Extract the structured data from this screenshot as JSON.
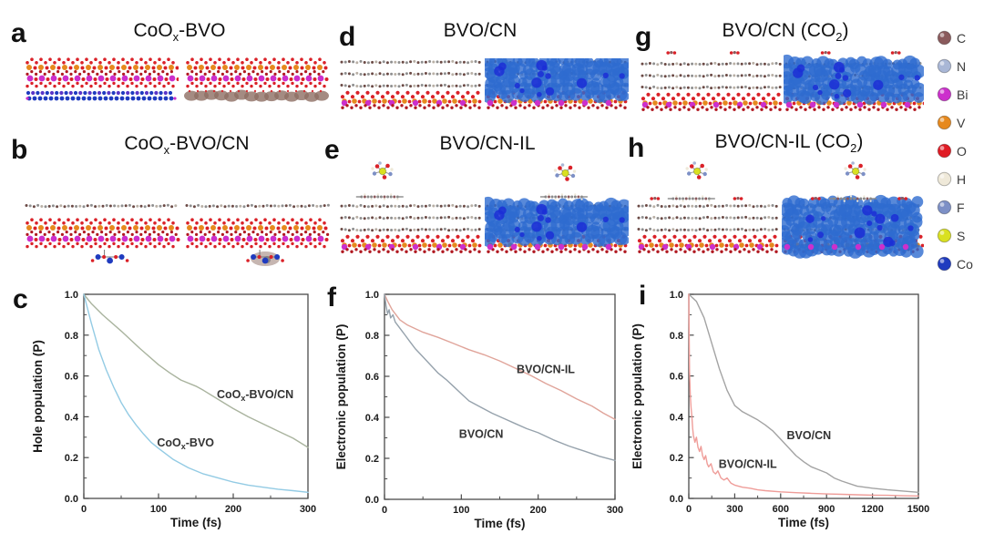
{
  "panels": {
    "a": {
      "letter": "a",
      "title": {
        "pre": "CoO",
        "sub": "x",
        "post": "-BVO"
      }
    },
    "b": {
      "letter": "b",
      "title": {
        "pre": "CoO",
        "sub": "x",
        "post": "-BVO/CN"
      }
    },
    "c": {
      "letter": "c"
    },
    "d": {
      "letter": "d",
      "title": {
        "pre": "BVO/CN",
        "sub": "",
        "post": ""
      }
    },
    "e": {
      "letter": "e",
      "title": {
        "pre": "BVO/CN-IL",
        "sub": "",
        "post": ""
      }
    },
    "f": {
      "letter": "f"
    },
    "g": {
      "letter": "g",
      "title": {
        "pre": "BVO/CN (CO",
        "sub": "2",
        "post": ")"
      }
    },
    "h": {
      "letter": "h",
      "title": {
        "pre": "BVO/CN-IL (CO",
        "sub": "2",
        "post": ")"
      }
    },
    "i": {
      "letter": "i"
    }
  },
  "legend": {
    "items": [
      {
        "symbol": "C",
        "color": "#8a5a5c"
      },
      {
        "symbol": "N",
        "color": "#a9b7d6"
      },
      {
        "symbol": "Bi",
        "color": "#cc2fcc"
      },
      {
        "symbol": "V",
        "color": "#e6891e"
      },
      {
        "symbol": "O",
        "color": "#e01b24"
      },
      {
        "symbol": "H",
        "color": "#efe9d9"
      },
      {
        "symbol": "F",
        "color": "#7d90c6"
      },
      {
        "symbol": "S",
        "color": "#d9e021"
      },
      {
        "symbol": "Co",
        "color": "#1f3bbf"
      }
    ]
  },
  "structures": {
    "a": [
      {
        "base": "bvo-slab",
        "bottom": "coox-atom-rows",
        "overlay": null,
        "molecules": []
      },
      {
        "base": "bvo-slab",
        "bottom": "hole-density-blobs",
        "overlay": null,
        "molecules": []
      }
    ],
    "b": [
      {
        "base": "cn-sheet-bvo-slab",
        "bottom": "coox-cluster",
        "overlay": null,
        "molecules": []
      },
      {
        "base": "cn-sheet-bvo-slab",
        "bottom": "coox-cluster-blob",
        "overlay": null,
        "molecules": []
      }
    ],
    "d": [
      {
        "base": "cn3-bvo-slab",
        "bottom": null,
        "overlay": null,
        "molecules": []
      },
      {
        "base": "cn3-bvo-slab",
        "bottom": null,
        "overlay": "electron-density-blue",
        "molecules": []
      }
    ],
    "e": [
      {
        "base": "cn3-bvo-slab",
        "bottom": null,
        "overlay": null,
        "molecules": [
          {
            "type": "il-anion",
            "fx": 0.3,
            "y": 22
          },
          {
            "type": "il-cation-chain",
            "fx": 0.28,
            "y": 50
          }
        ]
      },
      {
        "base": "cn3-bvo-slab",
        "bottom": null,
        "overlay": "electron-density-blue",
        "molecules": [
          {
            "type": "il-anion",
            "fx": 0.56,
            "y": 24
          },
          {
            "type": "il-cation-chain",
            "fx": 0.55,
            "y": 50
          }
        ]
      }
    ],
    "g": [
      {
        "base": "cn3-bvo-slab",
        "bottom": null,
        "overlay": null,
        "molecules": [
          {
            "type": "co2",
            "fx": 0.22,
            "y": 8
          },
          {
            "type": "co2",
            "fx": 0.66,
            "y": 8
          }
        ]
      },
      {
        "base": "cn3-bvo-slab",
        "bottom": null,
        "overlay": "electron-density-blue",
        "molecules": [
          {
            "type": "co2",
            "fx": 0.3,
            "y": 8
          },
          {
            "type": "co2",
            "fx": 0.8,
            "y": 8
          }
        ]
      }
    ],
    "h": [
      {
        "base": "cn3-bvo-slab",
        "bottom": null,
        "overlay": null,
        "molecules": [
          {
            "type": "il-anion",
            "fx": 0.42,
            "y": 22
          },
          {
            "type": "co2",
            "fx": 0.13,
            "y": 52
          },
          {
            "type": "il-cation-chain",
            "fx": 0.38,
            "y": 52
          },
          {
            "type": "co2",
            "fx": 0.7,
            "y": 52
          }
        ]
      },
      {
        "base": "cn3-bvo-slab",
        "bottom": null,
        "overlay": "electron-density-blue-full",
        "molecules": [
          {
            "type": "il-anion",
            "fx": 0.52,
            "y": 22
          },
          {
            "type": "co2",
            "fx": 0.24,
            "y": 52
          },
          {
            "type": "il-cation-chain",
            "fx": 0.5,
            "y": 52
          },
          {
            "type": "co2",
            "fx": 0.85,
            "y": 52
          }
        ]
      }
    ]
  },
  "chart_data": [
    {
      "id": "c",
      "type": "line",
      "title": "",
      "xlabel": "Time (fs)",
      "ylabel": "Hole population (P)",
      "xlim": [
        0,
        300
      ],
      "ylim": [
        0.0,
        1.0
      ],
      "xticks": [
        0,
        100,
        200,
        300
      ],
      "yticks": [
        0.0,
        0.2,
        0.4,
        0.6,
        0.8,
        1.0
      ],
      "x_minor_step": 50,
      "y_minor_step": 0.1,
      "grid": false,
      "series": [
        {
          "name": "CoOx-BVO/CN",
          "label": {
            "pre": "CoO",
            "sub": "x",
            "post": "-BVO/CN"
          },
          "color": "#a9b39e",
          "label_at": [
            178,
            0.49
          ],
          "x": [
            0,
            10,
            25,
            50,
            75,
            100,
            115,
            130,
            150,
            160,
            180,
            200,
            220,
            240,
            260,
            280,
            300
          ],
          "y": [
            1.0,
            0.955,
            0.9,
            0.82,
            0.735,
            0.655,
            0.615,
            0.58,
            0.55,
            0.53,
            0.485,
            0.44,
            0.4,
            0.365,
            0.33,
            0.295,
            0.25
          ]
        },
        {
          "name": "CoOx-BVO",
          "label": {
            "pre": "CoO",
            "sub": "x",
            "post": "-BVO"
          },
          "color": "#93cbe4",
          "label_at": [
            98,
            0.255
          ],
          "x": [
            0,
            10,
            20,
            30,
            40,
            50,
            60,
            70,
            80,
            90,
            100,
            120,
            140,
            160,
            180,
            200,
            220,
            240,
            260,
            280,
            300
          ],
          "y": [
            1.0,
            0.86,
            0.73,
            0.63,
            0.545,
            0.47,
            0.41,
            0.36,
            0.315,
            0.275,
            0.245,
            0.19,
            0.15,
            0.12,
            0.1,
            0.08,
            0.065,
            0.055,
            0.045,
            0.038,
            0.03
          ]
        }
      ]
    },
    {
      "id": "f",
      "type": "line",
      "title": "",
      "xlabel": "Time (fs)",
      "ylabel": "Electronic population (P)",
      "xlim": [
        0,
        300
      ],
      "ylim": [
        0.0,
        1.0
      ],
      "xticks": [
        0,
        100,
        200,
        300
      ],
      "yticks": [
        0.0,
        0.2,
        0.4,
        0.6,
        0.8,
        1.0
      ],
      "x_minor_step": 50,
      "y_minor_step": 0.1,
      "grid": false,
      "series": [
        {
          "name": "BVO/CN-IL",
          "label": {
            "pre": "BVO/CN-IL",
            "sub": "",
            "post": ""
          },
          "color": "#e0a49a",
          "label_at": [
            172,
            0.615
          ],
          "x": [
            0,
            5,
            10,
            20,
            30,
            50,
            70,
            90,
            110,
            130,
            150,
            170,
            190,
            210,
            230,
            250,
            270,
            285,
            300
          ],
          "y": [
            1.0,
            0.96,
            0.925,
            0.875,
            0.85,
            0.815,
            0.79,
            0.76,
            0.73,
            0.705,
            0.675,
            0.64,
            0.605,
            0.565,
            0.53,
            0.49,
            0.455,
            0.42,
            0.39
          ]
        },
        {
          "name": "BVO/CN",
          "label": {
            "pre": "BVO/CN",
            "sub": "",
            "post": ""
          },
          "color": "#96a2ac",
          "label_at": [
            97,
            0.3
          ],
          "x": [
            0,
            2,
            4,
            6,
            8,
            11,
            14,
            18,
            22,
            27,
            33,
            40,
            50,
            60,
            70,
            80,
            90,
            100,
            110,
            125,
            140,
            155,
            170,
            185,
            200,
            220,
            240,
            260,
            280,
            300
          ],
          "y": [
            1.0,
            0.945,
            0.905,
            0.925,
            0.885,
            0.9,
            0.865,
            0.845,
            0.825,
            0.8,
            0.77,
            0.735,
            0.695,
            0.655,
            0.615,
            0.585,
            0.55,
            0.515,
            0.48,
            0.45,
            0.42,
            0.395,
            0.37,
            0.345,
            0.325,
            0.29,
            0.26,
            0.235,
            0.21,
            0.19
          ]
        }
      ]
    },
    {
      "id": "i",
      "type": "line",
      "title": "",
      "xlabel": "Time (fs)",
      "ylabel": "Electronic population (P)",
      "xlim": [
        0,
        1500
      ],
      "ylim": [
        0.0,
        1.0
      ],
      "xticks": [
        0,
        300,
        600,
        900,
        1200,
        1500
      ],
      "yticks": [
        0.0,
        0.2,
        0.4,
        0.6,
        0.8,
        1.0
      ],
      "x_minor_step": 150,
      "y_minor_step": 0.1,
      "grid": false,
      "series": [
        {
          "name": "BVO/CN",
          "label": {
            "pre": "BVO/CN",
            "sub": "",
            "post": ""
          },
          "color": "#a3a3a3",
          "label_at": [
            640,
            0.29
          ],
          "x": [
            0,
            50,
            100,
            150,
            200,
            250,
            300,
            350,
            400,
            450,
            500,
            550,
            600,
            650,
            700,
            750,
            800,
            850,
            900,
            950,
            1000,
            1100,
            1200,
            1300,
            1400,
            1500
          ],
          "y": [
            1.0,
            0.965,
            0.885,
            0.76,
            0.635,
            0.53,
            0.455,
            0.425,
            0.405,
            0.385,
            0.36,
            0.33,
            0.29,
            0.25,
            0.21,
            0.18,
            0.155,
            0.14,
            0.125,
            0.1,
            0.085,
            0.06,
            0.05,
            0.042,
            0.036,
            0.03
          ]
        },
        {
          "name": "BVO/CN-IL",
          "label": {
            "pre": "BVO/CN-IL",
            "sub": "",
            "post": ""
          },
          "color": "#ef9d99",
          "label_at": [
            195,
            0.15
          ],
          "x": [
            0,
            5,
            10,
            15,
            20,
            25,
            30,
            40,
            50,
            60,
            70,
            80,
            90,
            100,
            110,
            120,
            130,
            145,
            160,
            175,
            190,
            210,
            230,
            250,
            275,
            300,
            350,
            400,
            450,
            500,
            600,
            700,
            800,
            900,
            1000,
            1100,
            1200,
            1300,
            1400,
            1500
          ],
          "y": [
            1.0,
            0.62,
            0.5,
            0.445,
            0.4,
            0.345,
            0.31,
            0.275,
            0.3,
            0.25,
            0.23,
            0.255,
            0.21,
            0.19,
            0.21,
            0.17,
            0.155,
            0.17,
            0.13,
            0.12,
            0.135,
            0.1,
            0.09,
            0.1,
            0.075,
            0.065,
            0.055,
            0.05,
            0.042,
            0.038,
            0.032,
            0.028,
            0.025,
            0.022,
            0.02,
            0.018,
            0.016,
            0.015,
            0.013,
            0.012
          ]
        }
      ]
    }
  ]
}
